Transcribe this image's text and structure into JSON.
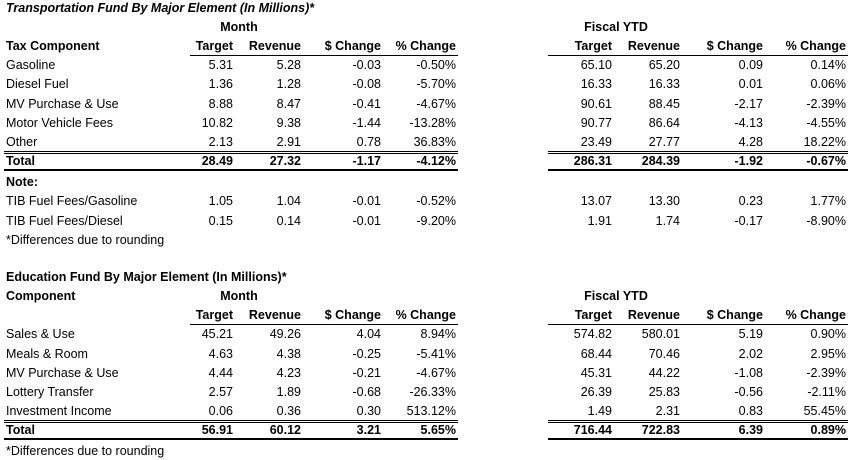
{
  "transportation": {
    "title": "Transportation Fund By Major Element (In Millions)*",
    "month_header": "Month",
    "ytd_header": "Fiscal YTD",
    "columns": [
      "Tax Component",
      "Target",
      "Revenue",
      "$ Change",
      "% Change",
      "Target",
      "Revenue",
      "$ Change",
      "% Change"
    ],
    "rows": [
      [
        "Gasoline",
        "5.31",
        "5.28",
        "-0.03",
        "-0.50%",
        "65.10",
        "65.20",
        "0.09",
        "0.14%"
      ],
      [
        "Diesel Fuel",
        "1.36",
        "1.28",
        "-0.08",
        "-5.70%",
        "16.33",
        "16.33",
        "0.01",
        "0.06%"
      ],
      [
        "MV Purchase & Use",
        "8.88",
        "8.47",
        "-0.41",
        "-4.67%",
        "90.61",
        "88.45",
        "-2.17",
        "-2.39%"
      ],
      [
        "Motor Vehicle Fees",
        "10.82",
        "9.38",
        "-1.44",
        "-13.28%",
        "90.77",
        "86.64",
        "-4.13",
        "-4.55%"
      ],
      [
        "Other",
        "2.13",
        "2.91",
        "0.78",
        "36.83%",
        "23.49",
        "27.77",
        "4.28",
        "18.22%"
      ]
    ],
    "total": [
      "Total",
      "28.49",
      "27.32",
      "-1.17",
      "-4.12%",
      "286.31",
      "284.39",
      "-1.92",
      "-0.67%"
    ],
    "note_label": "Note:",
    "note_rows": [
      [
        "TIB Fuel Fees/Gasoline",
        "1.05",
        "1.04",
        "-0.01",
        "-0.52%",
        "13.07",
        "13.30",
        "0.23",
        "1.77%"
      ],
      [
        "TIB Fuel Fees/Diesel",
        "0.15",
        "0.14",
        "-0.01",
        "-9.20%",
        "1.91",
        "1.74",
        "-0.17",
        "-8.90%"
      ]
    ],
    "footnote": "*Differences due to rounding"
  },
  "education": {
    "title": "Education Fund By Major Element (In Millions)*",
    "month_header": "Month",
    "ytd_header": "Fiscal YTD",
    "columns": [
      "Component",
      "Target",
      "Revenue",
      "$ Change",
      "% Change",
      "Target",
      "Revenue",
      "$ Change",
      "% Change"
    ],
    "rows": [
      [
        "Sales & Use",
        "45.21",
        "49.26",
        "4.04",
        "8.94%",
        "574.82",
        "580.01",
        "5.19",
        "0.90%"
      ],
      [
        "Meals & Room",
        "4.63",
        "4.38",
        "-0.25",
        "-5.41%",
        "68.44",
        "70.46",
        "2.02",
        "2.95%"
      ],
      [
        "MV Purchase & Use",
        "4.44",
        "4.23",
        "-0.21",
        "-4.67%",
        "45.31",
        "44.22",
        "-1.08",
        "-2.39%"
      ],
      [
        "Lottery Transfer",
        "2.57",
        "1.89",
        "-0.68",
        "-26.33%",
        "26.39",
        "25.83",
        "-0.56",
        "-2.11%"
      ],
      [
        "Investment Income",
        "0.06",
        "0.36",
        "0.30",
        "513.12%",
        "1.49",
        "2.31",
        "0.83",
        "55.45%"
      ]
    ],
    "total": [
      "Total",
      "56.91",
      "60.12",
      "3.21",
      "5.65%",
      "716.44",
      "722.83",
      "6.39",
      "0.89%"
    ],
    "footnote": "*Differences due to rounding"
  }
}
